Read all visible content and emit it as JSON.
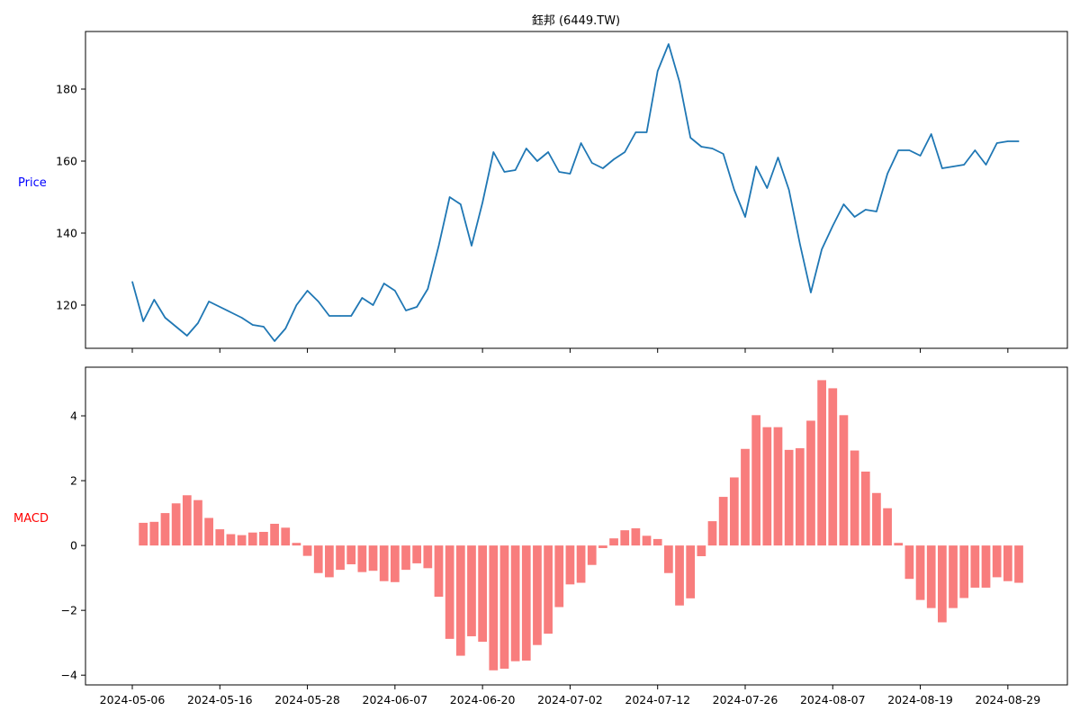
{
  "chart_data": [
    {
      "type": "line",
      "title": "鈺邦 (6449.TW)",
      "ylabel": "Price",
      "ylabel_color": "#0000ff",
      "line_color": "#1f77b4",
      "ylim": [
        108,
        196
      ],
      "yticks": [
        120,
        140,
        160,
        180
      ],
      "grid": false,
      "series": [
        {
          "x": [
            "2024-05-06",
            "2024-05-07",
            "2024-05-08",
            "2024-05-09",
            "2024-05-10",
            "2024-05-13",
            "2024-05-14",
            "2024-05-15",
            "2024-05-17",
            "2024-05-20",
            "2024-05-21",
            "2024-05-22",
            "2024-05-23",
            "2024-05-24",
            "2024-05-27",
            "2024-05-28",
            "2024-05-29",
            "2024-05-30",
            "2024-05-31",
            "2024-06-03",
            "2024-06-04",
            "2024-06-05",
            "2024-06-06",
            "2024-06-07",
            "2024-06-11",
            "2024-06-12",
            "2024-06-13",
            "2024-06-14",
            "2024-06-17",
            "2024-06-18",
            "2024-06-19",
            "2024-06-20",
            "2024-06-21",
            "2024-06-24",
            "2024-06-25",
            "2024-06-26",
            "2024-06-27",
            "2024-06-28",
            "2024-07-01",
            "2024-07-02",
            "2024-07-03",
            "2024-07-04",
            "2024-07-05",
            "2024-07-08",
            "2024-07-09",
            "2024-07-10",
            "2024-07-11",
            "2024-07-12",
            "2024-07-15",
            "2024-07-16",
            "2024-07-17",
            "2024-07-18",
            "2024-07-19",
            "2024-07-22",
            "2024-07-23",
            "2024-07-26",
            "2024-07-29",
            "2024-07-30",
            "2024-07-31",
            "2024-08-01",
            "2024-08-02",
            "2024-08-05",
            "2024-08-06",
            "2024-08-07",
            "2024-08-08",
            "2024-08-09",
            "2024-08-12",
            "2024-08-13",
            "2024-08-14",
            "2024-08-15",
            "2024-08-16",
            "2024-08-19",
            "2024-08-20",
            "2024-08-21",
            "2024-08-22",
            "2024-08-23",
            "2024-08-26",
            "2024-08-27",
            "2024-08-28",
            "2024-08-29",
            "2024-08-30"
          ],
          "values": [
            126.5,
            115.5,
            121.5,
            116.5,
            114,
            111.5,
            115,
            121,
            118,
            116.5,
            114.5,
            114,
            110,
            113.5,
            120,
            124,
            121,
            117,
            117,
            117,
            122,
            120,
            126,
            124,
            118.5,
            119.5,
            124.5,
            136.5,
            150,
            148,
            136.5,
            148.5,
            162.5,
            157,
            157.5,
            163.5,
            160,
            162.5,
            157,
            156.5,
            165,
            159.5,
            158,
            160.5,
            162.5,
            168,
            168,
            185,
            192.5,
            182,
            166.5,
            164,
            163.5,
            162,
            152,
            144.5,
            158.5,
            152.5,
            161,
            152,
            137,
            123.5,
            135.5,
            142,
            148,
            144.5,
            146.5,
            146,
            156.5,
            163,
            163,
            161.5,
            167.5,
            158,
            158.5,
            159,
            163,
            159,
            165,
            165.5,
            165.5
          ]
        }
      ]
    },
    {
      "type": "bar",
      "ylabel": "MACD",
      "ylabel_color": "#ff0000",
      "bar_color": "#f87d7d",
      "ylim": [
        -4.3,
        5.5
      ],
      "yticks": [
        -4,
        -2,
        0,
        2,
        4
      ],
      "xticks": [
        "2024-05-06",
        "2024-05-16",
        "2024-05-28",
        "2024-06-07",
        "2024-06-20",
        "2024-07-02",
        "2024-07-12",
        "2024-07-26",
        "2024-08-07",
        "2024-08-19",
        "2024-08-29"
      ],
      "grid": false,
      "series": [
        {
          "x": [
            "2024-05-07",
            "2024-05-08",
            "2024-05-09",
            "2024-05-10",
            "2024-05-13",
            "2024-05-14",
            "2024-05-15",
            "2024-05-16",
            "2024-05-17",
            "2024-05-20",
            "2024-05-21",
            "2024-05-22",
            "2024-05-23",
            "2024-05-24",
            "2024-05-27",
            "2024-05-28",
            "2024-05-29",
            "2024-05-30",
            "2024-05-31",
            "2024-06-03",
            "2024-06-04",
            "2024-06-05",
            "2024-06-06",
            "2024-06-07",
            "2024-06-11",
            "2024-06-12",
            "2024-06-13",
            "2024-06-14",
            "2024-06-17",
            "2024-06-18",
            "2024-06-19",
            "2024-06-20",
            "2024-06-21",
            "2024-06-24",
            "2024-06-25",
            "2024-06-26",
            "2024-06-27",
            "2024-06-28",
            "2024-07-01",
            "2024-07-02",
            "2024-07-03",
            "2024-07-04",
            "2024-07-05",
            "2024-07-08",
            "2024-07-09",
            "2024-07-10",
            "2024-07-11",
            "2024-07-12",
            "2024-07-15",
            "2024-07-16",
            "2024-07-17",
            "2024-07-18",
            "2024-07-19",
            "2024-07-22",
            "2024-07-23",
            "2024-07-26",
            "2024-07-29",
            "2024-07-30",
            "2024-07-31",
            "2024-08-01",
            "2024-08-02",
            "2024-08-05",
            "2024-08-06",
            "2024-08-07",
            "2024-08-08",
            "2024-08-09",
            "2024-08-12",
            "2024-08-13",
            "2024-08-14",
            "2024-08-15",
            "2024-08-16",
            "2024-08-19",
            "2024-08-20",
            "2024-08-21",
            "2024-08-22",
            "2024-08-23",
            "2024-08-26",
            "2024-08-27",
            "2024-08-28",
            "2024-08-29",
            "2024-08-30"
          ],
          "values": [
            0.7,
            0.73,
            1.0,
            1.3,
            1.55,
            1.4,
            0.85,
            0.5,
            0.35,
            0.32,
            0.4,
            0.42,
            0.67,
            0.55,
            0.08,
            -0.32,
            -0.85,
            -0.98,
            -0.75,
            -0.58,
            -0.82,
            -0.78,
            -1.1,
            -1.13,
            -0.75,
            -0.55,
            -0.7,
            -1.58,
            -2.88,
            -3.4,
            -2.8,
            -2.97,
            -3.85,
            -3.8,
            -3.57,
            -3.55,
            -3.07,
            -2.72,
            -1.9,
            -1.2,
            -1.15,
            -0.6,
            -0.08,
            0.22,
            0.47,
            0.53,
            0.3,
            0.2,
            -0.85,
            -1.85,
            -1.63,
            -0.33,
            0.75,
            1.5,
            2.1,
            2.98,
            4.02,
            3.65,
            3.65,
            2.95,
            3.0,
            3.85,
            5.1,
            4.85,
            4.02,
            2.93,
            2.28,
            1.62,
            1.15,
            0.08,
            -1.03,
            -1.68,
            -1.93,
            -2.37,
            -1.93,
            -1.62,
            -1.3,
            -1.3,
            -0.98,
            -1.1,
            -1.15
          ]
        }
      ]
    }
  ]
}
